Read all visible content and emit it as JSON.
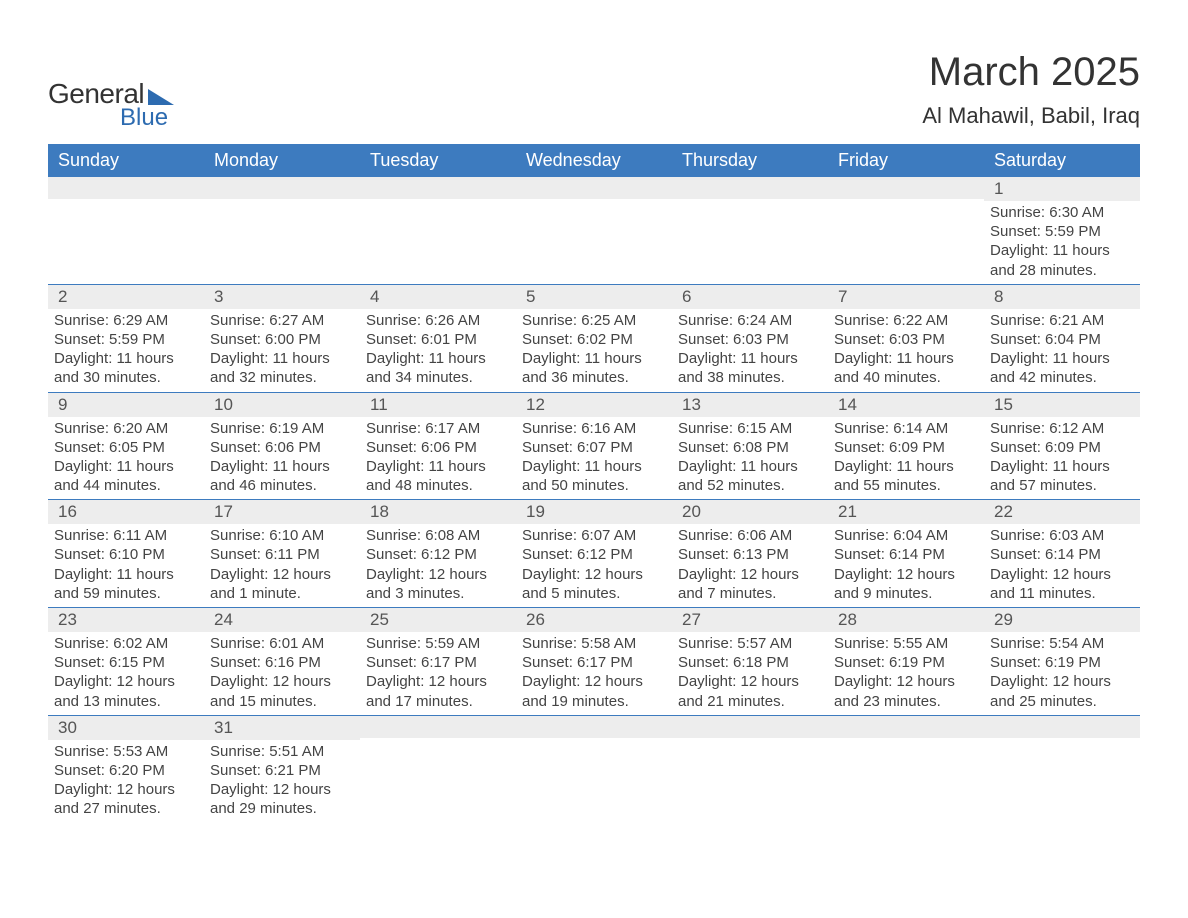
{
  "brand": {
    "general": "General",
    "blue": "Blue"
  },
  "title": "March 2025",
  "subtitle": "Al Mahawil, Babil, Iraq",
  "colors": {
    "header_bg": "#3d7bbf",
    "header_text": "#ffffff",
    "daynum_bg": "#ededed",
    "daynum_text": "#555555",
    "body_text": "#444444",
    "week_border": "#3d7bbf",
    "page_bg": "#ffffff",
    "logo_accent": "#2d6bb0"
  },
  "days_of_week": [
    "Sunday",
    "Monday",
    "Tuesday",
    "Wednesday",
    "Thursday",
    "Friday",
    "Saturday"
  ],
  "weeks": [
    [
      null,
      null,
      null,
      null,
      null,
      null,
      {
        "n": "1",
        "sunrise": "Sunrise: 6:30 AM",
        "sunset": "Sunset: 5:59 PM",
        "dl1": "Daylight: 11 hours",
        "dl2": "and 28 minutes."
      }
    ],
    [
      {
        "n": "2",
        "sunrise": "Sunrise: 6:29 AM",
        "sunset": "Sunset: 5:59 PM",
        "dl1": "Daylight: 11 hours",
        "dl2": "and 30 minutes."
      },
      {
        "n": "3",
        "sunrise": "Sunrise: 6:27 AM",
        "sunset": "Sunset: 6:00 PM",
        "dl1": "Daylight: 11 hours",
        "dl2": "and 32 minutes."
      },
      {
        "n": "4",
        "sunrise": "Sunrise: 6:26 AM",
        "sunset": "Sunset: 6:01 PM",
        "dl1": "Daylight: 11 hours",
        "dl2": "and 34 minutes."
      },
      {
        "n": "5",
        "sunrise": "Sunrise: 6:25 AM",
        "sunset": "Sunset: 6:02 PM",
        "dl1": "Daylight: 11 hours",
        "dl2": "and 36 minutes."
      },
      {
        "n": "6",
        "sunrise": "Sunrise: 6:24 AM",
        "sunset": "Sunset: 6:03 PM",
        "dl1": "Daylight: 11 hours",
        "dl2": "and 38 minutes."
      },
      {
        "n": "7",
        "sunrise": "Sunrise: 6:22 AM",
        "sunset": "Sunset: 6:03 PM",
        "dl1": "Daylight: 11 hours",
        "dl2": "and 40 minutes."
      },
      {
        "n": "8",
        "sunrise": "Sunrise: 6:21 AM",
        "sunset": "Sunset: 6:04 PM",
        "dl1": "Daylight: 11 hours",
        "dl2": "and 42 minutes."
      }
    ],
    [
      {
        "n": "9",
        "sunrise": "Sunrise: 6:20 AM",
        "sunset": "Sunset: 6:05 PM",
        "dl1": "Daylight: 11 hours",
        "dl2": "and 44 minutes."
      },
      {
        "n": "10",
        "sunrise": "Sunrise: 6:19 AM",
        "sunset": "Sunset: 6:06 PM",
        "dl1": "Daylight: 11 hours",
        "dl2": "and 46 minutes."
      },
      {
        "n": "11",
        "sunrise": "Sunrise: 6:17 AM",
        "sunset": "Sunset: 6:06 PM",
        "dl1": "Daylight: 11 hours",
        "dl2": "and 48 minutes."
      },
      {
        "n": "12",
        "sunrise": "Sunrise: 6:16 AM",
        "sunset": "Sunset: 6:07 PM",
        "dl1": "Daylight: 11 hours",
        "dl2": "and 50 minutes."
      },
      {
        "n": "13",
        "sunrise": "Sunrise: 6:15 AM",
        "sunset": "Sunset: 6:08 PM",
        "dl1": "Daylight: 11 hours",
        "dl2": "and 52 minutes."
      },
      {
        "n": "14",
        "sunrise": "Sunrise: 6:14 AM",
        "sunset": "Sunset: 6:09 PM",
        "dl1": "Daylight: 11 hours",
        "dl2": "and 55 minutes."
      },
      {
        "n": "15",
        "sunrise": "Sunrise: 6:12 AM",
        "sunset": "Sunset: 6:09 PM",
        "dl1": "Daylight: 11 hours",
        "dl2": "and 57 minutes."
      }
    ],
    [
      {
        "n": "16",
        "sunrise": "Sunrise: 6:11 AM",
        "sunset": "Sunset: 6:10 PM",
        "dl1": "Daylight: 11 hours",
        "dl2": "and 59 minutes."
      },
      {
        "n": "17",
        "sunrise": "Sunrise: 6:10 AM",
        "sunset": "Sunset: 6:11 PM",
        "dl1": "Daylight: 12 hours",
        "dl2": "and 1 minute."
      },
      {
        "n": "18",
        "sunrise": "Sunrise: 6:08 AM",
        "sunset": "Sunset: 6:12 PM",
        "dl1": "Daylight: 12 hours",
        "dl2": "and 3 minutes."
      },
      {
        "n": "19",
        "sunrise": "Sunrise: 6:07 AM",
        "sunset": "Sunset: 6:12 PM",
        "dl1": "Daylight: 12 hours",
        "dl2": "and 5 minutes."
      },
      {
        "n": "20",
        "sunrise": "Sunrise: 6:06 AM",
        "sunset": "Sunset: 6:13 PM",
        "dl1": "Daylight: 12 hours",
        "dl2": "and 7 minutes."
      },
      {
        "n": "21",
        "sunrise": "Sunrise: 6:04 AM",
        "sunset": "Sunset: 6:14 PM",
        "dl1": "Daylight: 12 hours",
        "dl2": "and 9 minutes."
      },
      {
        "n": "22",
        "sunrise": "Sunrise: 6:03 AM",
        "sunset": "Sunset: 6:14 PM",
        "dl1": "Daylight: 12 hours",
        "dl2": "and 11 minutes."
      }
    ],
    [
      {
        "n": "23",
        "sunrise": "Sunrise: 6:02 AM",
        "sunset": "Sunset: 6:15 PM",
        "dl1": "Daylight: 12 hours",
        "dl2": "and 13 minutes."
      },
      {
        "n": "24",
        "sunrise": "Sunrise: 6:01 AM",
        "sunset": "Sunset: 6:16 PM",
        "dl1": "Daylight: 12 hours",
        "dl2": "and 15 minutes."
      },
      {
        "n": "25",
        "sunrise": "Sunrise: 5:59 AM",
        "sunset": "Sunset: 6:17 PM",
        "dl1": "Daylight: 12 hours",
        "dl2": "and 17 minutes."
      },
      {
        "n": "26",
        "sunrise": "Sunrise: 5:58 AM",
        "sunset": "Sunset: 6:17 PM",
        "dl1": "Daylight: 12 hours",
        "dl2": "and 19 minutes."
      },
      {
        "n": "27",
        "sunrise": "Sunrise: 5:57 AM",
        "sunset": "Sunset: 6:18 PM",
        "dl1": "Daylight: 12 hours",
        "dl2": "and 21 minutes."
      },
      {
        "n": "28",
        "sunrise": "Sunrise: 5:55 AM",
        "sunset": "Sunset: 6:19 PM",
        "dl1": "Daylight: 12 hours",
        "dl2": "and 23 minutes."
      },
      {
        "n": "29",
        "sunrise": "Sunrise: 5:54 AM",
        "sunset": "Sunset: 6:19 PM",
        "dl1": "Daylight: 12 hours",
        "dl2": "and 25 minutes."
      }
    ],
    [
      {
        "n": "30",
        "sunrise": "Sunrise: 5:53 AM",
        "sunset": "Sunset: 6:20 PM",
        "dl1": "Daylight: 12 hours",
        "dl2": "and 27 minutes."
      },
      {
        "n": "31",
        "sunrise": "Sunrise: 5:51 AM",
        "sunset": "Sunset: 6:21 PM",
        "dl1": "Daylight: 12 hours",
        "dl2": "and 29 minutes."
      },
      null,
      null,
      null,
      null,
      null
    ]
  ]
}
